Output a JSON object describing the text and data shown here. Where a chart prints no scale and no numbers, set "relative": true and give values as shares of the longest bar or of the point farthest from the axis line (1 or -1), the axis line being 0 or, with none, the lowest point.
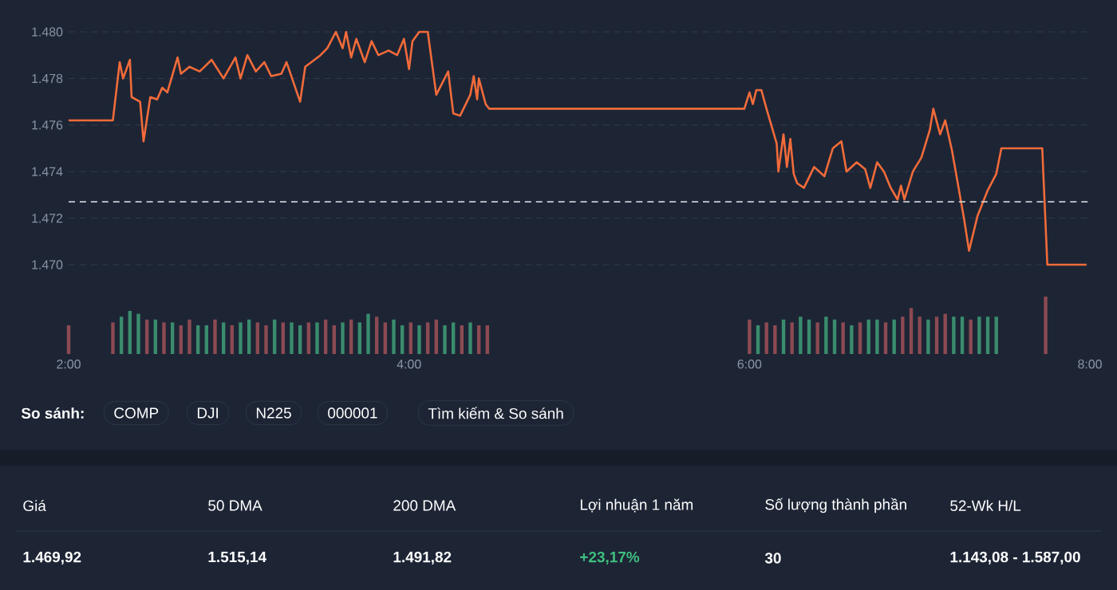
{
  "chart_data": [
    {
      "type": "line",
      "x": [
        2.0,
        2.26,
        2.3,
        2.32,
        2.36,
        2.37,
        2.42,
        2.44,
        2.48,
        2.52,
        2.55,
        2.58,
        2.64,
        2.66,
        2.71,
        2.77,
        2.84,
        2.91,
        2.98,
        3.01,
        3.05,
        3.1,
        3.15,
        3.19,
        3.25,
        3.28,
        3.36,
        3.39,
        3.48,
        3.52,
        3.57,
        3.61,
        3.63,
        3.66,
        3.69,
        3.74,
        3.78,
        3.82,
        3.88,
        3.93,
        3.97,
        4.0,
        4.02,
        4.06,
        4.11,
        4.16,
        4.23,
        4.26,
        4.3,
        4.36,
        4.38,
        4.4,
        4.41,
        4.45,
        4.47,
        4.49,
        5.97,
        6.0,
        6.02,
        6.04,
        6.07,
        6.1,
        6.16,
        6.17,
        6.2,
        6.22,
        6.24,
        6.26,
        6.28,
        6.32,
        6.38,
        6.44,
        6.49,
        6.54,
        6.57,
        6.63,
        6.68,
        6.71,
        6.75,
        6.79,
        6.83,
        6.87,
        6.89,
        6.91,
        6.96,
        7.01,
        7.06,
        7.08,
        7.12,
        7.15,
        7.19,
        7.26,
        7.29,
        7.34,
        7.4,
        7.45,
        7.48,
        7.72,
        7.75,
        7.98
      ],
      "series": [
        {
          "color": "#f26b3a",
          "values": [
            1476.2,
            1476.2,
            1478.7,
            1478.0,
            1478.8,
            1477.2,
            1477.0,
            1475.3,
            1477.2,
            1477.1,
            1477.6,
            1477.4,
            1478.9,
            1478.2,
            1478.5,
            1478.3,
            1478.8,
            1478.0,
            1478.9,
            1478.0,
            1479.0,
            1478.3,
            1478.7,
            1478.1,
            1478.2,
            1478.7,
            1477.0,
            1478.5,
            1479.0,
            1479.3,
            1480.0,
            1479.3,
            1480.0,
            1478.9,
            1479.7,
            1478.7,
            1479.6,
            1479.0,
            1479.2,
            1479.0,
            1479.7,
            1478.4,
            1479.6,
            1480.0,
            1480.0,
            1477.3,
            1478.3,
            1476.5,
            1476.4,
            1477.3,
            1478.1,
            1477.1,
            1478.0,
            1476.9,
            1476.7,
            1476.7,
            1476.7,
            1477.4,
            1476.9,
            1477.5,
            1477.5,
            1476.7,
            1475.2,
            1474.0,
            1475.6,
            1474.2,
            1475.4,
            1473.9,
            1473.5,
            1473.3,
            1474.2,
            1473.8,
            1475.0,
            1475.3,
            1474.0,
            1474.4,
            1474.1,
            1473.3,
            1474.4,
            1474.0,
            1473.3,
            1472.8,
            1473.4,
            1472.8,
            1474.0,
            1474.6,
            1475.8,
            1476.7,
            1475.6,
            1476.2,
            1474.9,
            1472.0,
            1470.6,
            1472.1,
            1473.2,
            1473.9,
            1475.0,
            1475.0,
            1470.0,
            1470.0
          ]
        }
      ],
      "xlim": [
        2,
        8
      ],
      "ylim": [
        1470,
        1480
      ],
      "yticks": [
        {
          "value": 1470,
          "label": "1.470"
        },
        {
          "value": 1472,
          "label": "1.472"
        },
        {
          "value": 1474,
          "label": "1.474"
        },
        {
          "value": 1476,
          "label": "1.476"
        },
        {
          "value": 1478,
          "label": "1.478"
        },
        {
          "value": 1480,
          "label": "1.480"
        }
      ],
      "grid": "y",
      "tick_labels": "y",
      "ref_lines": [
        {
          "axis": "y",
          "value": 1472.7,
          "color": "#c8ccd4",
          "line_style": "dashed"
        }
      ]
    },
    {
      "type": "bar",
      "relative": true,
      "x": [
        2.0,
        2.26,
        2.31,
        2.36,
        2.41,
        2.46,
        2.51,
        2.56,
        2.61,
        2.66,
        2.71,
        2.76,
        2.81,
        2.86,
        2.91,
        2.96,
        3.01,
        3.06,
        3.11,
        3.16,
        3.21,
        3.26,
        3.31,
        3.36,
        3.41,
        3.46,
        3.51,
        3.56,
        3.61,
        3.66,
        3.71,
        3.76,
        3.81,
        3.86,
        3.91,
        3.96,
        4.01,
        4.06,
        4.11,
        4.16,
        4.21,
        4.26,
        4.31,
        4.36,
        4.41,
        4.46,
        6.0,
        6.05,
        6.1,
        6.15,
        6.2,
        6.25,
        6.3,
        6.35,
        6.4,
        6.45,
        6.5,
        6.55,
        6.6,
        6.65,
        6.7,
        6.75,
        6.8,
        6.85,
        6.9,
        6.95,
        7.0,
        7.05,
        7.1,
        7.15,
        7.2,
        7.25,
        7.3,
        7.35,
        7.4,
        7.45,
        7.74
      ],
      "values": [
        0.5,
        0.55,
        0.65,
        0.75,
        0.7,
        0.6,
        0.6,
        0.55,
        0.55,
        0.5,
        0.6,
        0.5,
        0.5,
        0.6,
        0.55,
        0.5,
        0.55,
        0.6,
        0.55,
        0.5,
        0.6,
        0.55,
        0.55,
        0.5,
        0.55,
        0.55,
        0.6,
        0.5,
        0.55,
        0.6,
        0.55,
        0.7,
        0.65,
        0.55,
        0.6,
        0.5,
        0.55,
        0.5,
        0.55,
        0.6,
        0.5,
        0.55,
        0.5,
        0.55,
        0.5,
        0.5,
        0.6,
        0.5,
        0.55,
        0.5,
        0.6,
        0.55,
        0.65,
        0.6,
        0.55,
        0.65,
        0.6,
        0.55,
        0.5,
        0.55,
        0.6,
        0.6,
        0.55,
        0.6,
        0.65,
        0.8,
        0.65,
        0.6,
        0.65,
        0.7,
        0.65,
        0.65,
        0.6,
        0.65,
        0.65,
        0.65,
        1.0
      ],
      "colors": [
        "#8c4a52",
        "#8c4a52",
        "#3a8c6e",
        "#3a8c6e",
        "#3a8c6e",
        "#8c4a52",
        "#3a8c6e",
        "#8c4a52",
        "#3a8c6e",
        "#8c4a52",
        "#8c4a52",
        "#3a8c6e",
        "#3a8c6e",
        "#8c4a52",
        "#3a8c6e",
        "#8c4a52",
        "#3a8c6e",
        "#3a8c6e",
        "#8c4a52",
        "#8c4a52",
        "#3a8c6e",
        "#8c4a52",
        "#3a8c6e",
        "#3a8c6e",
        "#8c4a52",
        "#3a8c6e",
        "#8c4a52",
        "#8c4a52",
        "#3a8c6e",
        "#8c4a52",
        "#3a8c6e",
        "#3a8c6e",
        "#8c4a52",
        "#8c4a52",
        "#3a8c6e",
        "#3a8c6e",
        "#8c4a52",
        "#3a8c6e",
        "#8c4a52",
        "#8c4a52",
        "#3a8c6e",
        "#3a8c6e",
        "#8c4a52",
        "#3a8c6e",
        "#8c4a52",
        "#8c4a52",
        "#8c4a52",
        "#3a8c6e",
        "#8c4a52",
        "#8c4a52",
        "#3a8c6e",
        "#8c4a52",
        "#3a8c6e",
        "#3a8c6e",
        "#8c4a52",
        "#3a8c6e",
        "#3a8c6e",
        "#8c4a52",
        "#3a8c6e",
        "#8c4a52",
        "#3a8c6e",
        "#3a8c6e",
        "#8c4a52",
        "#3a8c6e",
        "#8c4a52",
        "#8c4a52",
        "#8c4a52",
        "#3a8c6e",
        "#8c4a52",
        "#8c4a52",
        "#3a8c6e",
        "#3a8c6e",
        "#8c4a52",
        "#3a8c6e",
        "#3a8c6e",
        "#3a8c6e",
        "#8c4a52"
      ],
      "xlim": [
        2,
        8
      ],
      "xticks": [
        {
          "value": 2,
          "label": "2:00"
        },
        {
          "value": 4,
          "label": "4:00"
        },
        {
          "value": 6,
          "label": "6:00"
        },
        {
          "value": 8,
          "label": "8:00"
        }
      ],
      "tick_labels": "x"
    },
    {
      "type": "other",
      "annotations": [
        "So sánh:",
        "COMP",
        "DJI",
        "N225",
        "000001",
        "Tìm kiếm & So sánh",
        "Giá",
        "50 DMA",
        "200 DMA",
        "Lợi nhuận 1 năm",
        "Số lượng thành phần",
        "52-Wk H/L",
        "1.469,92",
        "1.515,14",
        "1.491,82",
        "+23,17%",
        "30",
        "1.143,08 - 1.587,00"
      ],
      "colors": [
        "#ffffff",
        "#ffffff",
        "#ffffff",
        "#ffffff",
        "#ffffff",
        "#ffffff",
        "#ffffff",
        "#ffffff",
        "#ffffff",
        "#ffffff",
        "#ffffff",
        "#ffffff",
        "#ffffff",
        "#ffffff",
        "#ffffff",
        "#3fbf7f",
        "#ffffff",
        "#ffffff"
      ]
    }
  ]
}
